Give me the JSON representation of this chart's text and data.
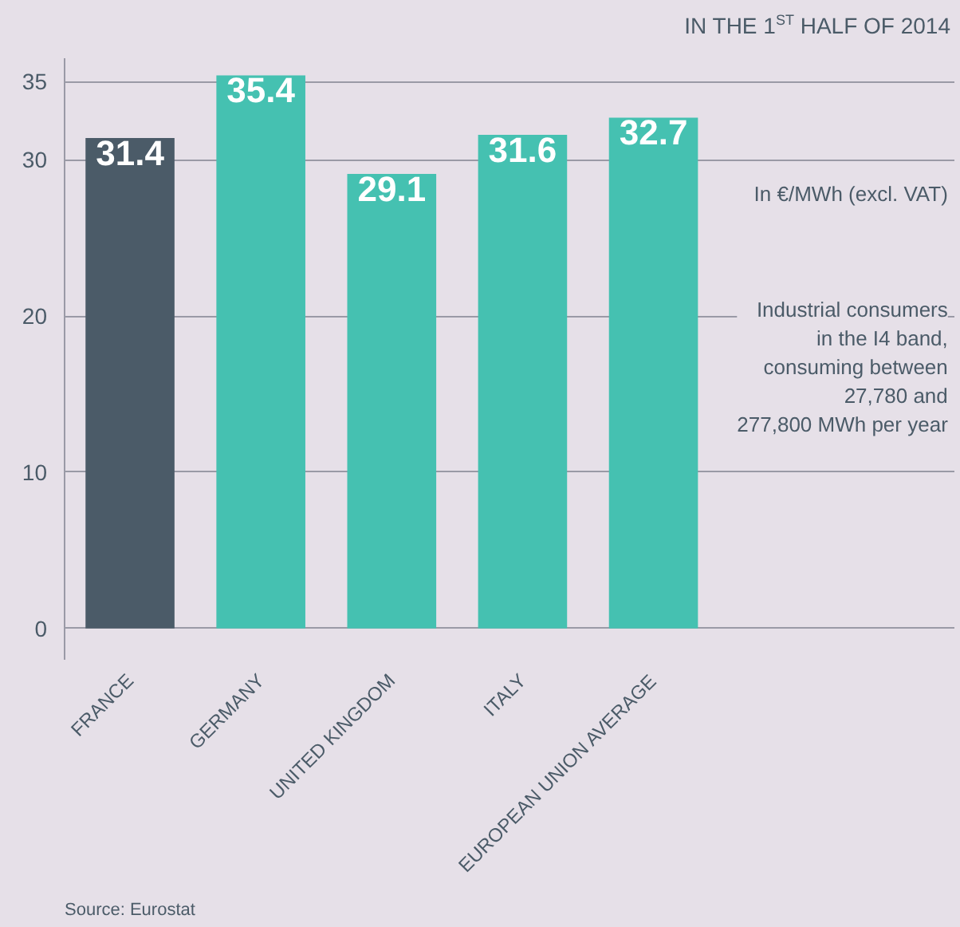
{
  "chart_data": {
    "type": "bar",
    "title": "IN THE 1$^{ST}$ HALF OF 2014",
    "categories": [
      "FRANCE",
      "GERMANY",
      "UNITED KINGDOM",
      "ITALY",
      "EUROPEAN UNION AVERAGE"
    ],
    "values": [
      31.4,
      35.4,
      29.1,
      31.6,
      32.7
    ],
    "colors": [
      "#4b5b68",
      "#45c1b1",
      "#45c1b1",
      "#45c1b1",
      "#45c1b1"
    ],
    "data_labels": true,
    "ylim": [
      -2,
      36.5
    ],
    "yticks": [
      0,
      10,
      20,
      30,
      35
    ],
    "grid": "y",
    "annotations": [
      "In €/MWh (excl. VAT)",
      "Industrial consumers\nin the I4 band,\nconsuming between\n27,780 and\n277,800 MWh per year",
      "Source: Eurostat"
    ]
  }
}
